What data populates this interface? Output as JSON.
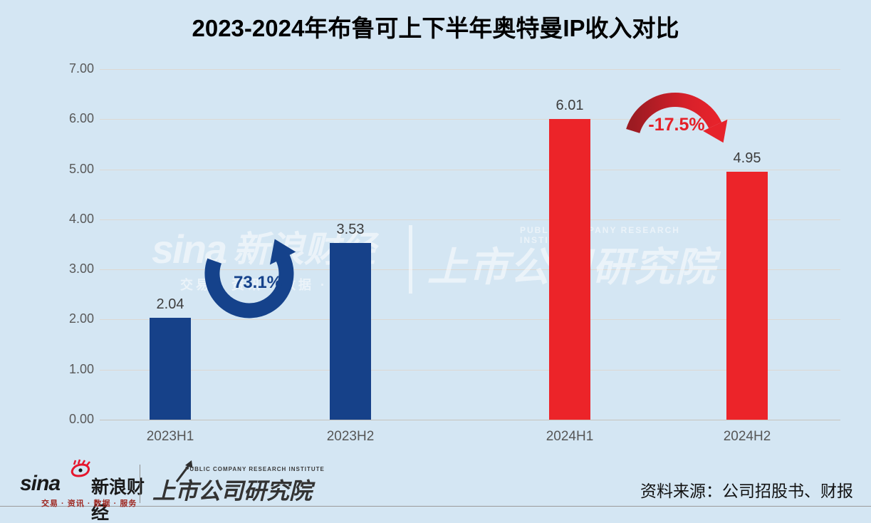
{
  "page": {
    "title": "2023-2024年布鲁可上下半年奥特曼IP收入对比"
  },
  "chart_data": {
    "type": "bar",
    "title": "2023-2024年布鲁可上下半年奥特曼IP收入对比",
    "categories": [
      "2023H1",
      "2023H2",
      "2024H1",
      "2024H2"
    ],
    "values": [
      2.04,
      3.53,
      6.01,
      4.95
    ],
    "value_labels": [
      "2.04",
      "3.53",
      "6.01",
      "4.95"
    ],
    "bar_colors": [
      "#164189",
      "#164189",
      "#EC2429",
      "#EC2429"
    ],
    "xlabel": "",
    "ylabel": "",
    "ylim": [
      0,
      7
    ],
    "ytick_labels": [
      "0.00",
      "1.00",
      "2.00",
      "3.00",
      "4.00",
      "5.00",
      "6.00",
      "7.00"
    ],
    "grid": true,
    "legend_position": "none",
    "annotations": [
      {
        "label": "73.1%",
        "direction": "up",
        "between": [
          "2023H1",
          "2023H2"
        ],
        "color": "#15428B"
      },
      {
        "label": "-17.5%",
        "direction": "down",
        "between": [
          "2024H1",
          "2024H2"
        ],
        "color": "#E52028"
      }
    ]
  },
  "watermark": {
    "sina_word": "sina",
    "sina_cn": "新浪财经",
    "sina_sub": "交易 · 资讯 · 数据 · 服务",
    "pcri_en": "PUBLIC COMPANY RESEARCH INSTITUTE",
    "pcri_cn": "上市公司研究院"
  },
  "footer": {
    "sina_word": "sina",
    "sina_cn": "新浪财经",
    "sina_sub": "交易 · 资讯 · 数据 · 服务",
    "pcri_en": "PUBLIC COMPANY RESEARCH INSTITUTE",
    "pcri_cn": "上市公司研究院",
    "source": "资料来源：公司招股书、财报"
  },
  "colors": {
    "background": "#D4E6F3",
    "blue_bar": "#164189",
    "red_bar": "#EC2429",
    "gridline": "#DDD8D2",
    "axis_text": "#595959",
    "value_text": "#3D3D3D",
    "up_annotation": "#15428B",
    "down_annotation": "#E52028",
    "red_arrow_dark": "#9C1B22",
    "red_arrow_bright": "#E6232B",
    "sina_red": "#E6162D"
  }
}
